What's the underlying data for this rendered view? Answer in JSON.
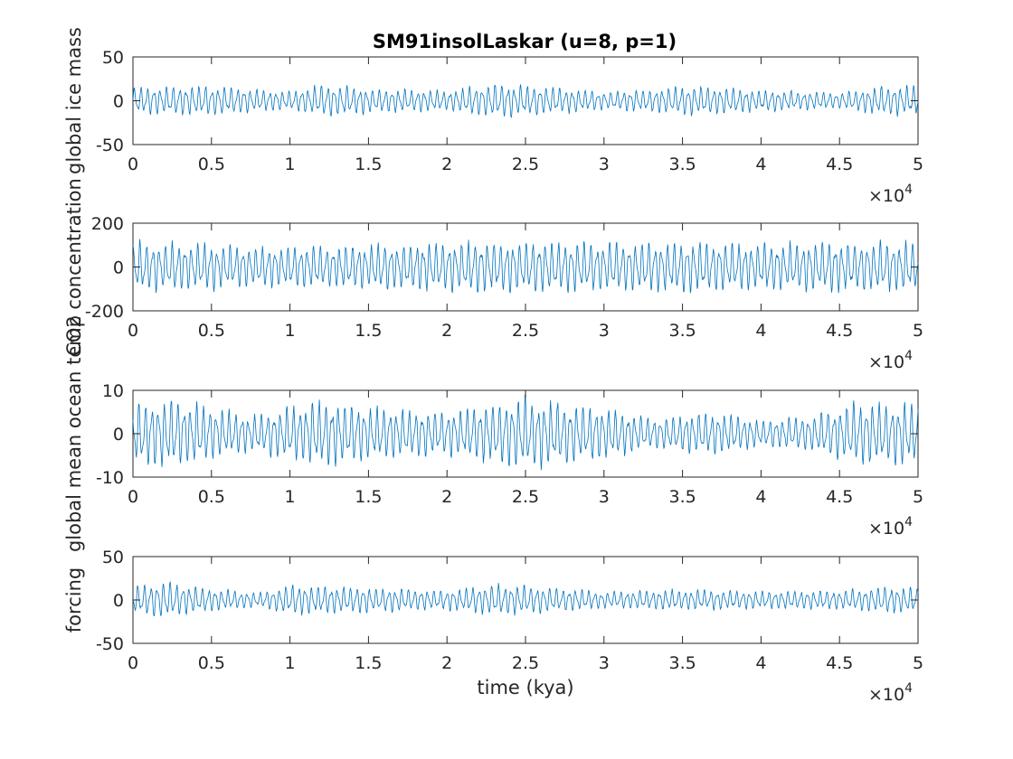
{
  "figure": {
    "title": "SM91insolLaskar (u=8, p=1)",
    "line_color": "#0072BD"
  },
  "chart_data": [
    {
      "type": "line",
      "ylabel": "global ice mass",
      "xlabel": "",
      "xlim": [
        0,
        50000
      ],
      "ylim": [
        -50,
        50
      ],
      "xticks": [
        "0",
        "0.5",
        "1",
        "1.5",
        "2",
        "2.5",
        "3",
        "3.5",
        "4",
        "4.5",
        "5"
      ],
      "yticks": [
        "-50",
        "0",
        "50"
      ],
      "x_exponent_base": "×10",
      "x_exponent_power": "4",
      "series": [
        {
          "approx_amplitude": 17,
          "description_x_range": [
            0,
            50000
          ]
        }
      ],
      "envelope": [
        [
          0,
          15
        ],
        [
          5000,
          17
        ],
        [
          10000,
          10
        ],
        [
          12000,
          19
        ],
        [
          15000,
          14
        ],
        [
          20000,
          11
        ],
        [
          23000,
          20
        ],
        [
          27000,
          15
        ],
        [
          30000,
          10
        ],
        [
          33000,
          13
        ],
        [
          36000,
          17
        ],
        [
          40000,
          12
        ],
        [
          45000,
          9
        ],
        [
          48000,
          17
        ],
        [
          50000,
          16
        ]
      ]
    },
    {
      "type": "line",
      "ylabel": "CO2 concentration",
      "xlabel": "",
      "xlim": [
        0,
        50000
      ],
      "ylim": [
        -200,
        200
      ],
      "xticks": [
        "0",
        "0.5",
        "1",
        "1.5",
        "2",
        "2.5",
        "3",
        "3.5",
        "4",
        "4.5",
        "5"
      ],
      "yticks": [
        "-200",
        "0",
        "200"
      ],
      "x_exponent_base": "×10",
      "x_exponent_power": "4",
      "series": [
        {
          "approx_amplitude": 110,
          "description_x_range": [
            0,
            50000
          ]
        }
      ],
      "envelope": [
        [
          0,
          115
        ],
        [
          5000,
          105
        ],
        [
          7000,
          90
        ],
        [
          10000,
          95
        ],
        [
          15000,
          100
        ],
        [
          20000,
          110
        ],
        [
          25000,
          115
        ],
        [
          30000,
          108
        ],
        [
          35000,
          112
        ],
        [
          40000,
          105
        ],
        [
          45000,
          112
        ],
        [
          50000,
          115
        ]
      ]
    },
    {
      "type": "line",
      "ylabel": "global mean ocean temp",
      "xlabel": "",
      "xlim": [
        0,
        50000
      ],
      "ylim": [
        -10,
        10
      ],
      "xticks": [
        "0",
        "0.5",
        "1",
        "1.5",
        "2",
        "2.5",
        "3",
        "3.5",
        "4",
        "4.5",
        "5"
      ],
      "yticks": [
        "-10",
        "0",
        "10"
      ],
      "x_exponent_base": "×10",
      "x_exponent_power": "4",
      "series": [
        {
          "approx_amplitude": 7,
          "description_x_range": [
            0,
            50000
          ]
        }
      ],
      "envelope": [
        [
          0,
          7
        ],
        [
          2500,
          8
        ],
        [
          5000,
          6
        ],
        [
          7500,
          4
        ],
        [
          10000,
          6
        ],
        [
          12000,
          7.5
        ],
        [
          15000,
          6
        ],
        [
          20000,
          5
        ],
        [
          25000,
          8
        ],
        [
          30000,
          6
        ],
        [
          33000,
          3.5
        ],
        [
          37000,
          5
        ],
        [
          40000,
          3
        ],
        [
          43000,
          4
        ],
        [
          46000,
          7
        ],
        [
          50000,
          7
        ]
      ]
    },
    {
      "type": "line",
      "ylabel": "forcing",
      "xlabel": "time (kya)",
      "xlim": [
        0,
        50000
      ],
      "ylim": [
        -50,
        50
      ],
      "xticks": [
        "0",
        "0.5",
        "1",
        "1.5",
        "2",
        "2.5",
        "3",
        "3.5",
        "4",
        "4.5",
        "5"
      ],
      "yticks": [
        "-50",
        "0",
        "50"
      ],
      "x_exponent_base": "×10",
      "x_exponent_power": "4",
      "series": [
        {
          "approx_amplitude": 15,
          "description_x_range": [
            0,
            50000
          ]
        }
      ],
      "envelope": [
        [
          0,
          16
        ],
        [
          2000,
          20
        ],
        [
          5000,
          13
        ],
        [
          8000,
          8
        ],
        [
          10000,
          17
        ],
        [
          15000,
          14
        ],
        [
          20000,
          11
        ],
        [
          23000,
          18
        ],
        [
          27000,
          14
        ],
        [
          30000,
          9
        ],
        [
          35000,
          12
        ],
        [
          40000,
          10
        ],
        [
          45000,
          11
        ],
        [
          48000,
          15
        ],
        [
          50000,
          14
        ]
      ]
    }
  ]
}
